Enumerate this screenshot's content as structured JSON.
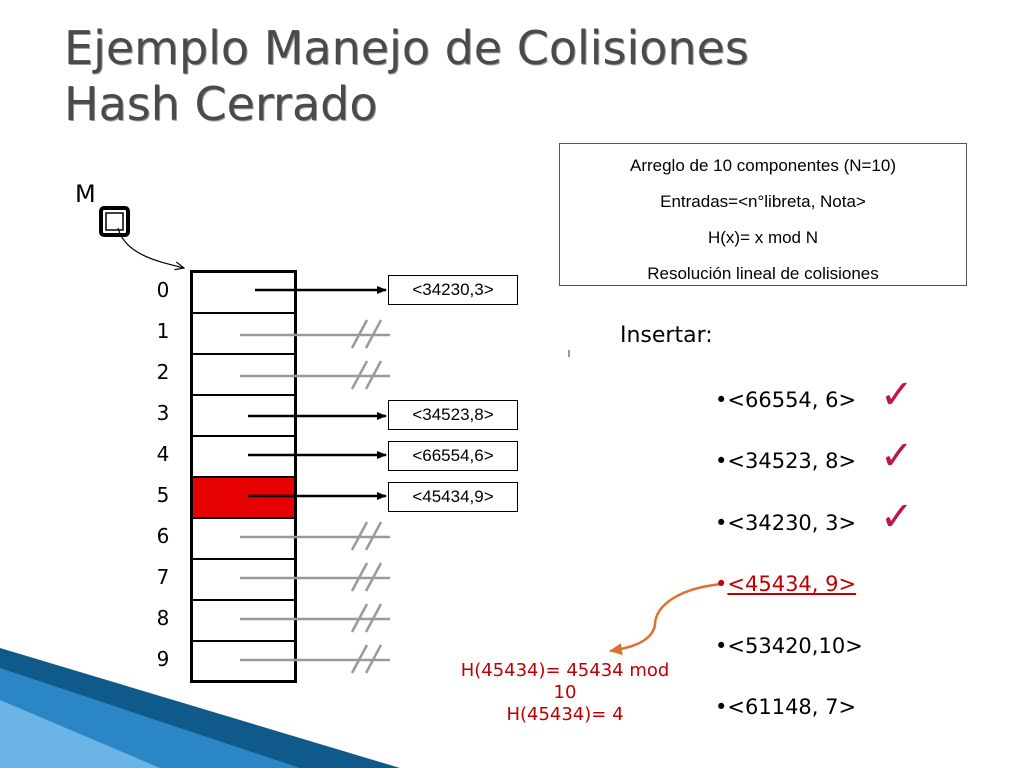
{
  "title": {
    "line1": "Ejemplo Manejo de Colisiones",
    "line2": "Hash Cerrado"
  },
  "info_box": [
    "Arreglo de 10 componentes (N=10)",
    "Entradas=<n°libreta, Nota>",
    "H(x)= x mod N",
    "Resolución lineal de colisiones"
  ],
  "m_label": "M",
  "indices": [
    "0",
    "1",
    "2",
    "3",
    "4",
    "5",
    "6",
    "7",
    "8",
    "9"
  ],
  "highlight_index": 5,
  "highlight_color": "#e60000",
  "entries": [
    {
      "index": 0,
      "text": "<34230,3>"
    },
    {
      "index": 3,
      "text": "<34523,8>"
    },
    {
      "index": 4,
      "text": "<66554,6>"
    },
    {
      "index": 5,
      "text": "<45434,9>"
    }
  ],
  "null_pointer_indices": [
    1,
    2,
    6,
    7,
    8,
    9
  ],
  "insert_title": "Insertar:",
  "insert_list": [
    {
      "text": "<66554, 6>",
      "checked": true
    },
    {
      "text": "<34523, 8>",
      "checked": true
    },
    {
      "text": "<34230, 3>",
      "checked": true
    },
    {
      "text": "<45434, 9>",
      "highlighted": true
    },
    {
      "text": "<53420,10>"
    },
    {
      "text": "<61148, 7>"
    }
  ],
  "hash_calc": [
    "H(45434)= 45434 mod",
    "10",
    "H(45434)= 4"
  ],
  "accent_red": "#c00000",
  "check_color": "#c0144c",
  "arrow_orange": "#e07030"
}
